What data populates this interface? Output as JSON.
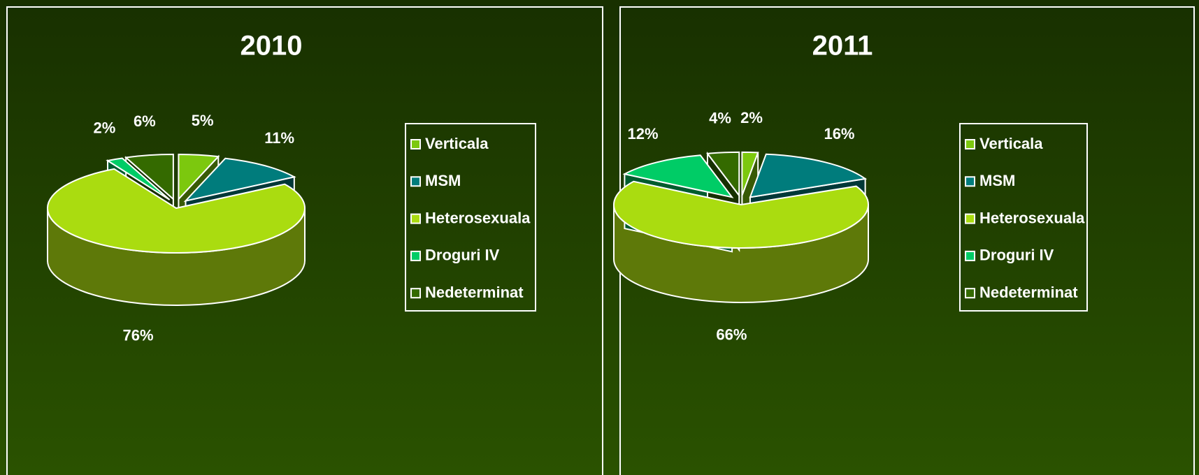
{
  "chart_data": [
    {
      "type": "pie",
      "title": "2010",
      "categories": [
        "Verticala",
        "MSM",
        "Heterosexuala",
        "Droguri IV",
        "Nedeterminat"
      ],
      "values": [
        5,
        11,
        76,
        2,
        6
      ],
      "value_labels": [
        "5%",
        "11%",
        "76%",
        "2%",
        "6%"
      ],
      "colors": [
        "#7cc80e",
        "#007c7c",
        "#aadc10",
        "#00cc66",
        "#346a00"
      ]
    },
    {
      "type": "pie",
      "title": "2011",
      "categories": [
        "Verticala",
        "MSM",
        "Heterosexuala",
        "Droguri IV",
        "Nedeterminat"
      ],
      "values": [
        2,
        16,
        66,
        12,
        4
      ],
      "value_labels": [
        "2%",
        "16%",
        "66%",
        "12%",
        "4%"
      ],
      "colors": [
        "#7cc80e",
        "#007c7c",
        "#aadc10",
        "#00cc66",
        "#346a00"
      ]
    }
  ]
}
